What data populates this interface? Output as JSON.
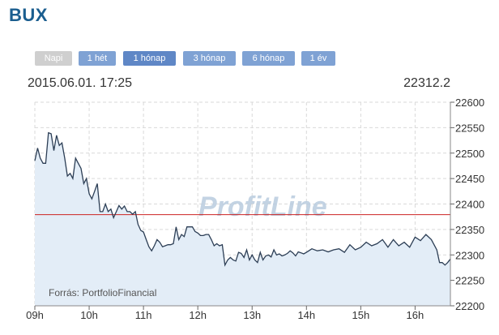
{
  "header": {
    "title": "BUX"
  },
  "range_buttons": [
    {
      "label": "Napi",
      "state": "disabled"
    },
    {
      "label": "1 hét",
      "state": "normal"
    },
    {
      "label": "1 hónap",
      "state": "active"
    },
    {
      "label": "3 hónap",
      "state": "normal"
    },
    {
      "label": "6 hónap",
      "state": "normal"
    },
    {
      "label": "1 év",
      "state": "normal"
    }
  ],
  "info": {
    "datetime": "2015.06.01. 17:25",
    "last_value": "22312.2"
  },
  "watermark": "ProfitLine",
  "source": "Forrás: PortfolioFinancial",
  "colors": {
    "title": "#1b5e8f",
    "line": "#2c3e55",
    "area": "#e3edf7",
    "reference_line": "#cc2222",
    "grid": "#d9d9d9",
    "button": "#7fa2d4",
    "button_disabled": "#cfcfcf"
  },
  "chart_data": {
    "type": "area",
    "title": "BUX",
    "xlabel": "",
    "ylabel": "",
    "x_ticks": [
      "09h",
      "10h",
      "11h",
      "12h",
      "13h",
      "14h",
      "15h",
      "16h"
    ],
    "y_ticks": [
      22200,
      22250,
      22300,
      22350,
      22400,
      22450,
      22500,
      22550,
      22600
    ],
    "xlim": [
      9.0,
      16.65
    ],
    "ylim": [
      22200,
      22600
    ],
    "reference_value": 22379,
    "grid": true,
    "series": [
      {
        "name": "",
        "x": [
          9.0,
          9.05,
          9.1,
          9.15,
          9.2,
          9.25,
          9.3,
          9.35,
          9.4,
          9.45,
          9.5,
          9.55,
          9.6,
          9.65,
          9.7,
          9.75,
          9.8,
          9.85,
          9.9,
          9.95,
          10.0,
          10.05,
          10.1,
          10.15,
          10.2,
          10.25,
          10.3,
          10.35,
          10.4,
          10.45,
          10.5,
          10.55,
          10.6,
          10.65,
          10.7,
          10.75,
          10.8,
          10.85,
          10.9,
          10.95,
          11.0,
          11.05,
          11.1,
          11.15,
          11.2,
          11.25,
          11.3,
          11.35,
          11.4,
          11.45,
          11.5,
          11.55,
          11.6,
          11.65,
          11.7,
          11.75,
          11.8,
          11.85,
          11.9,
          11.95,
          12.0,
          12.05,
          12.1,
          12.15,
          12.2,
          12.25,
          12.3,
          12.35,
          12.4,
          12.45,
          12.5,
          12.55,
          12.6,
          12.65,
          12.7,
          12.75,
          12.8,
          12.85,
          12.9,
          12.95,
          13.0,
          13.05,
          13.1,
          13.15,
          13.2,
          13.25,
          13.3,
          13.35,
          13.4,
          13.45,
          13.5,
          13.55,
          13.6,
          13.65,
          13.7,
          13.75,
          13.8,
          13.85,
          13.9,
          13.95,
          14.0,
          14.1,
          14.2,
          14.3,
          14.4,
          14.5,
          14.6,
          14.7,
          14.8,
          14.9,
          15.0,
          15.1,
          15.2,
          15.3,
          15.4,
          15.5,
          15.6,
          15.7,
          15.8,
          15.9,
          16.0,
          16.1,
          16.2,
          16.3,
          16.4,
          16.45,
          16.5,
          16.55,
          16.6,
          16.65
        ],
        "values": [
          22485,
          22510,
          22490,
          22480,
          22480,
          22540,
          22538,
          22505,
          22535,
          22515,
          22520,
          22490,
          22455,
          22460,
          22450,
          22490,
          22480,
          22470,
          22440,
          22450,
          22420,
          22410,
          22425,
          22440,
          22385,
          22385,
          22400,
          22385,
          22390,
          22373,
          22385,
          22397,
          22390,
          22396,
          22385,
          22385,
          22380,
          22385,
          22360,
          22348,
          22345,
          22330,
          22316,
          22308,
          22318,
          22330,
          22325,
          22316,
          22318,
          22320,
          22320,
          22322,
          22355,
          22330,
          22340,
          22336,
          22355,
          22355,
          22355,
          22346,
          22343,
          22338,
          22338,
          22340,
          22340,
          22330,
          22318,
          22322,
          22318,
          22320,
          22280,
          22290,
          22295,
          22290,
          22288,
          22305,
          22303,
          22295,
          22310,
          22290,
          22300,
          22290,
          22285,
          22305,
          22290,
          22298,
          22300,
          22296,
          22310,
          22300,
          22302,
          22298,
          22300,
          22303,
          22308,
          22304,
          22298,
          22306,
          22304,
          22302,
          22305,
          22312,
          22308,
          22310,
          22306,
          22310,
          22312,
          22305,
          22320,
          22310,
          22315,
          22325,
          22318,
          22322,
          22330,
          22315,
          22330,
          22318,
          22325,
          22315,
          22335,
          22328,
          22340,
          22330,
          22310,
          22285,
          22285,
          22280,
          22285,
          22292
        ]
      }
    ]
  }
}
